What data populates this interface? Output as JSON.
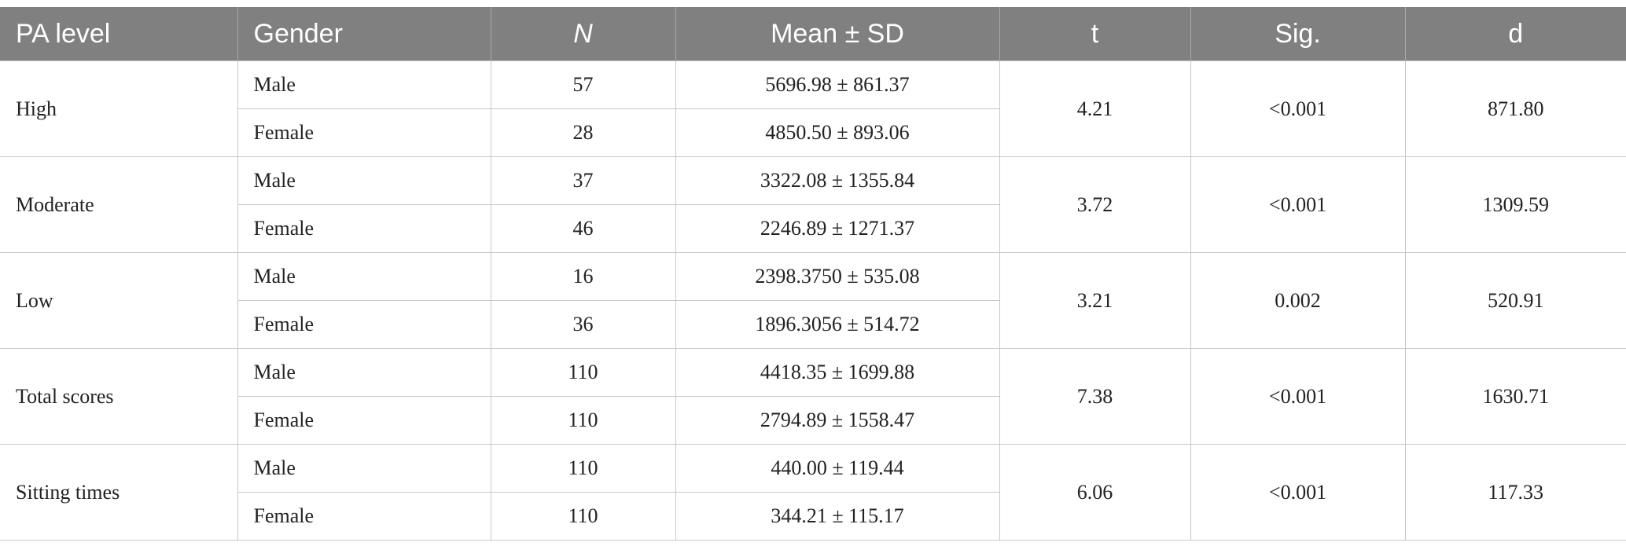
{
  "table": {
    "header": [
      "PA level",
      "Gender",
      "N",
      "Mean ± SD",
      "t",
      "Sig.",
      "d"
    ],
    "groups": [
      {
        "level": "High",
        "rows": [
          [
            "Male",
            "57",
            "5696.98 ± 861.37"
          ],
          [
            "Female",
            "28",
            "4850.50 ± 893.06"
          ]
        ],
        "t": "4.21",
        "sig": "<0.001",
        "d": "871.80"
      },
      {
        "level": "Moderate",
        "rows": [
          [
            "Male",
            "37",
            "3322.08 ± 1355.84"
          ],
          [
            "Female",
            "46",
            "2246.89 ± 1271.37"
          ]
        ],
        "t": "3.72",
        "sig": "<0.001",
        "d": "1309.59"
      },
      {
        "level": "Low",
        "rows": [
          [
            "Male",
            "16",
            "2398.3750 ± 535.08"
          ],
          [
            "Female",
            "36",
            "1896.3056 ± 514.72"
          ]
        ],
        "t": "3.21",
        "sig": "0.002",
        "d": "520.91"
      },
      {
        "level": "Total scores",
        "rows": [
          [
            "Male",
            "110",
            "4418.35 ± 1699.88"
          ],
          [
            "Female",
            "110",
            "2794.89 ± 1558.47"
          ]
        ],
        "t": "7.38",
        "sig": "<0.001",
        "d": "1630.71"
      },
      {
        "level": "Sitting times",
        "rows": [
          [
            "Male",
            "110",
            "440.00 ± 119.44"
          ],
          [
            "Female",
            "110",
            "344.21 ± 115.17"
          ]
        ],
        "t": "6.06",
        "sig": "<0.001",
        "d": "117.33"
      }
    ]
  }
}
